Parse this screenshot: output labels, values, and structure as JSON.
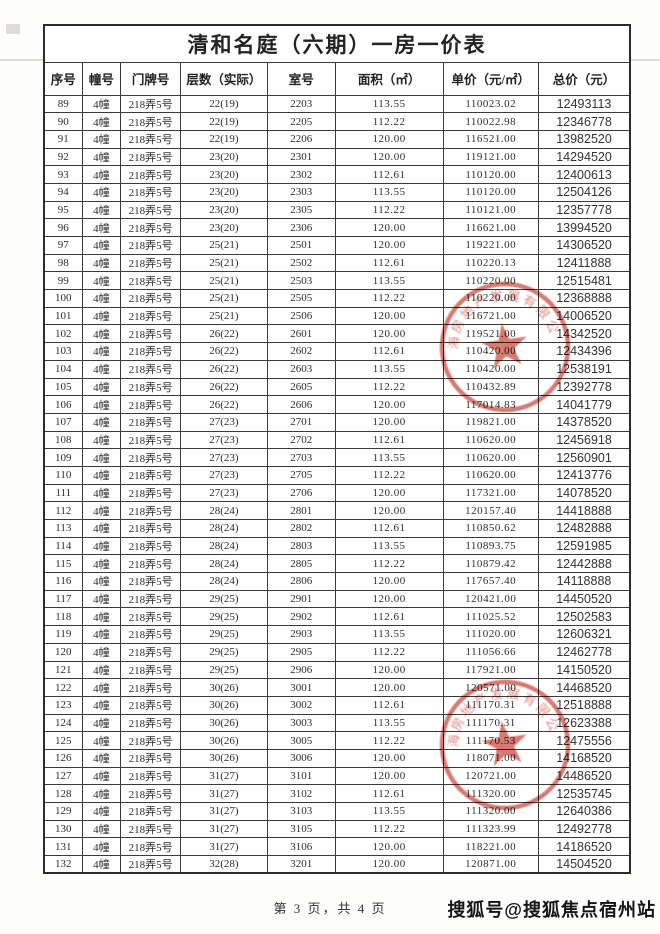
{
  "document": {
    "title": "清和名庭（六期）一房一价表",
    "page_indicator": "第 3 页，共 4 页",
    "watermark": "搜狐号@搜狐焦点宿州站"
  },
  "table": {
    "columns": [
      "序号",
      "幢号",
      "门牌号",
      "层数（实际）",
      "室号",
      "面积（㎡）",
      "单价（元/㎡）",
      "总价（元）"
    ],
    "rows": [
      [
        "89",
        "4幢",
        "218弄5号",
        "22(19)",
        "2203",
        "113.55",
        "110023.02",
        "12493113"
      ],
      [
        "90",
        "4幢",
        "218弄5号",
        "22(19)",
        "2205",
        "112.22",
        "110022.98",
        "12346778"
      ],
      [
        "91",
        "4幢",
        "218弄5号",
        "22(19)",
        "2206",
        "120.00",
        "116521.00",
        "13982520"
      ],
      [
        "92",
        "4幢",
        "218弄5号",
        "23(20)",
        "2301",
        "120.00",
        "119121.00",
        "14294520"
      ],
      [
        "93",
        "4幢",
        "218弄5号",
        "23(20)",
        "2302",
        "112.61",
        "110120.00",
        "12400613"
      ],
      [
        "94",
        "4幢",
        "218弄5号",
        "23(20)",
        "2303",
        "113.55",
        "110120.00",
        "12504126"
      ],
      [
        "95",
        "4幢",
        "218弄5号",
        "23(20)",
        "2305",
        "112.22",
        "110121.00",
        "12357778"
      ],
      [
        "96",
        "4幢",
        "218弄5号",
        "23(20)",
        "2306",
        "120.00",
        "116621.00",
        "13994520"
      ],
      [
        "97",
        "4幢",
        "218弄5号",
        "25(21)",
        "2501",
        "120.00",
        "119221.00",
        "14306520"
      ],
      [
        "98",
        "4幢",
        "218弄5号",
        "25(21)",
        "2502",
        "112.61",
        "110220.13",
        "12411888"
      ],
      [
        "99",
        "4幢",
        "218弄5号",
        "25(21)",
        "2503",
        "113.55",
        "110220.00",
        "12515481"
      ],
      [
        "100",
        "4幢",
        "218弄5号",
        "25(21)",
        "2505",
        "112.22",
        "110220.00",
        "12368888"
      ],
      [
        "101",
        "4幢",
        "218弄5号",
        "25(21)",
        "2506",
        "120.00",
        "116721.00",
        "14006520"
      ],
      [
        "102",
        "4幢",
        "218弄5号",
        "26(22)",
        "2601",
        "120.00",
        "119521.00",
        "14342520"
      ],
      [
        "103",
        "4幢",
        "218弄5号",
        "26(22)",
        "2602",
        "112.61",
        "110420.00",
        "12434396"
      ],
      [
        "104",
        "4幢",
        "218弄5号",
        "26(22)",
        "2603",
        "113.55",
        "110420.00",
        "12538191"
      ],
      [
        "105",
        "4幢",
        "218弄5号",
        "26(22)",
        "2605",
        "112.22",
        "110432.89",
        "12392778"
      ],
      [
        "106",
        "4幢",
        "218弄5号",
        "26(22)",
        "2606",
        "120.00",
        "117014.83",
        "14041779"
      ],
      [
        "107",
        "4幢",
        "218弄5号",
        "27(23)",
        "2701",
        "120.00",
        "119821.00",
        "14378520"
      ],
      [
        "108",
        "4幢",
        "218弄5号",
        "27(23)",
        "2702",
        "112.61",
        "110620.00",
        "12456918"
      ],
      [
        "109",
        "4幢",
        "218弄5号",
        "27(23)",
        "2703",
        "113.55",
        "110620.00",
        "12560901"
      ],
      [
        "110",
        "4幢",
        "218弄5号",
        "27(23)",
        "2705",
        "112.22",
        "110620.00",
        "12413776"
      ],
      [
        "111",
        "4幢",
        "218弄5号",
        "27(23)",
        "2706",
        "120.00",
        "117321.00",
        "14078520"
      ],
      [
        "112",
        "4幢",
        "218弄5号",
        "28(24)",
        "2801",
        "120.00",
        "120157.40",
        "14418888"
      ],
      [
        "113",
        "4幢",
        "218弄5号",
        "28(24)",
        "2802",
        "112.61",
        "110850.62",
        "12482888"
      ],
      [
        "114",
        "4幢",
        "218弄5号",
        "28(24)",
        "2803",
        "113.55",
        "110893.75",
        "12591985"
      ],
      [
        "115",
        "4幢",
        "218弄5号",
        "28(24)",
        "2805",
        "112.22",
        "110879.42",
        "12442888"
      ],
      [
        "116",
        "4幢",
        "218弄5号",
        "28(24)",
        "2806",
        "120.00",
        "117657.40",
        "14118888"
      ],
      [
        "117",
        "4幢",
        "218弄5号",
        "29(25)",
        "2901",
        "120.00",
        "120421.00",
        "14450520"
      ],
      [
        "118",
        "4幢",
        "218弄5号",
        "29(25)",
        "2902",
        "112.61",
        "111025.52",
        "12502583"
      ],
      [
        "119",
        "4幢",
        "218弄5号",
        "29(25)",
        "2903",
        "113.55",
        "111020.00",
        "12606321"
      ],
      [
        "120",
        "4幢",
        "218弄5号",
        "29(25)",
        "2905",
        "112.22",
        "111056.66",
        "12462778"
      ],
      [
        "121",
        "4幢",
        "218弄5号",
        "29(25)",
        "2906",
        "120.00",
        "117921.00",
        "14150520"
      ],
      [
        "122",
        "4幢",
        "218弄5号",
        "30(26)",
        "3001",
        "120.00",
        "120571.00",
        "14468520"
      ],
      [
        "123",
        "4幢",
        "218弄5号",
        "30(26)",
        "3002",
        "112.61",
        "111170.31",
        "12518888"
      ],
      [
        "124",
        "4幢",
        "218弄5号",
        "30(26)",
        "3003",
        "113.55",
        "111170.31",
        "12623388"
      ],
      [
        "125",
        "4幢",
        "218弄5号",
        "30(26)",
        "3005",
        "112.22",
        "111170.53",
        "12475556"
      ],
      [
        "126",
        "4幢",
        "218弄5号",
        "30(26)",
        "3006",
        "120.00",
        "118071.00",
        "14168520"
      ],
      [
        "127",
        "4幢",
        "218弄5号",
        "31(27)",
        "3101",
        "120.00",
        "120721.00",
        "14486520"
      ],
      [
        "128",
        "4幢",
        "218弄5号",
        "31(27)",
        "3102",
        "112.61",
        "111320.00",
        "12535745"
      ],
      [
        "129",
        "4幢",
        "218弄5号",
        "31(27)",
        "3103",
        "113.55",
        "111320.00",
        "12640386"
      ],
      [
        "130",
        "4幢",
        "218弄5号",
        "31(27)",
        "3105",
        "112.22",
        "111323.99",
        "12492778"
      ],
      [
        "131",
        "4幢",
        "218弄5号",
        "31(27)",
        "3106",
        "120.00",
        "118221.00",
        "14186520"
      ],
      [
        "132",
        "4幢",
        "218弄5号",
        "32(28)",
        "3201",
        "120.00",
        "120871.00",
        "14504520"
      ]
    ]
  },
  "stamp": {
    "arc_text": "上海房地产发展有限公司",
    "color": "#c9463a"
  }
}
